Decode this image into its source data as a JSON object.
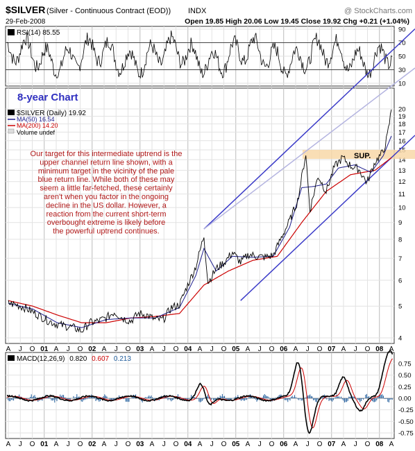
{
  "header": {
    "symbol": "$SILVER",
    "description": "(Silver - Continuous Contract (EOD))",
    "exchange": "INDX",
    "credit": "@ StockCharts.com",
    "date": "29-Feb-2008",
    "ohlc": "Open 19.85  High 20.06  Low 19.45  Close 19.92  Chg +0.21 (+1.04%)"
  },
  "rsi": {
    "label": "RSI(14) 85.55",
    "ticks": [
      "90",
      "70",
      "50",
      "30",
      "10"
    ]
  },
  "main": {
    "chart_title": "8-year Chart",
    "legend": {
      "price": "$SILVER (Daily) 19.92",
      "ma50": "MA(50) 16.54",
      "ma200": "MA(200) 14.20",
      "volume": "Volume undef"
    },
    "annotation": [
      "Our target for this intermediate uptrend is the",
      "upper channel return line shown, with a",
      "minimum target in the vicinity of the pale",
      "blue return line. While both of these may",
      "seem a little far-fetched, these certainly",
      "aren't when you factor in the ongoing",
      "decline in the US dollar. However, a",
      "reaction from the current short-term",
      "overbought extreme is likely before",
      "the powerful uptrend continues."
    ],
    "sup_label": "SUP.",
    "price_ticks": [
      "20",
      "19",
      "18",
      "17",
      "16",
      "15",
      "14",
      "13",
      "12",
      "11",
      "10",
      "9",
      "8",
      "7",
      "6",
      "5",
      "4"
    ],
    "x_axis_labels": [
      "A",
      "J",
      "O",
      "01",
      "A",
      "J",
      "O",
      "02",
      "A",
      "J",
      "O",
      "03",
      "A",
      "J",
      "O",
      "04",
      "A",
      "J",
      "O",
      "05",
      "A",
      "J",
      "O",
      "06",
      "A",
      "J",
      "O",
      "07",
      "A",
      "J",
      "O",
      "08",
      "A"
    ]
  },
  "macd": {
    "label": "MACD(12,26,9)",
    "v1": "0.820",
    "v2": "0.607",
    "v3": "0.213",
    "ticks": [
      "0.75",
      "0.50",
      "0.25",
      "0.00",
      "-0.25",
      "-0.50",
      "-0.75"
    ]
  },
  "colors": {
    "price": "#000000",
    "ma50": "#1c1c8c",
    "ma200": "#cc0000",
    "channel": "#3a3ac8",
    "pale_line": "#b4b4e0",
    "annotation": "#b01818",
    "title": "#3030c0",
    "support_band": "#f8d8a8",
    "macd_signal": "#cc0000",
    "macd_hist": "#1c5a9a"
  },
  "chart_data": {
    "type": "line",
    "title": "$SILVER (Silver - Continuous Contract (EOD)) INDX",
    "scale": "log",
    "x_range": [
      "2000-04",
      "2008-02"
    ],
    "ylim": [
      4,
      21
    ],
    "series": [
      {
        "name": "$SILVER (Daily)",
        "points": [
          [
            "2000-04",
            5.1
          ],
          [
            "2000-06",
            5.05
          ],
          [
            "2000-08",
            4.95
          ],
          [
            "2000-10",
            4.8
          ],
          [
            "2000-12",
            4.65
          ],
          [
            "2001-02",
            4.5
          ],
          [
            "2001-04",
            4.4
          ],
          [
            "2001-06",
            4.35
          ],
          [
            "2001-08",
            4.3
          ],
          [
            "2001-10",
            4.2
          ],
          [
            "2001-12",
            4.45
          ],
          [
            "2002-02",
            4.5
          ],
          [
            "2002-04",
            4.6
          ],
          [
            "2002-06",
            4.8
          ],
          [
            "2002-08",
            4.6
          ],
          [
            "2002-10",
            4.5
          ],
          [
            "2002-12",
            4.75
          ],
          [
            "2003-02",
            4.7
          ],
          [
            "2003-04",
            4.55
          ],
          [
            "2003-06",
            4.55
          ],
          [
            "2003-08",
            4.95
          ],
          [
            "2003-10",
            5.05
          ],
          [
            "2003-12",
            5.8
          ],
          [
            "2004-02",
            6.6
          ],
          [
            "2004-04",
            8.2
          ],
          [
            "2004-05",
            5.9
          ],
          [
            "2004-07",
            6.5
          ],
          [
            "2004-09",
            6.8
          ],
          [
            "2004-11",
            7.3
          ],
          [
            "2005-01",
            6.8
          ],
          [
            "2005-03",
            7.2
          ],
          [
            "2005-05",
            7.1
          ],
          [
            "2005-07",
            7.05
          ],
          [
            "2005-09",
            7.15
          ],
          [
            "2005-11",
            8.1
          ],
          [
            "2006-01",
            9.1
          ],
          [
            "2006-03",
            10.5
          ],
          [
            "2006-05",
            14.6
          ],
          [
            "2006-06",
            9.8
          ],
          [
            "2006-08",
            12.5
          ],
          [
            "2006-10",
            11.2
          ],
          [
            "2006-12",
            13.3
          ],
          [
            "2007-02",
            14.2
          ],
          [
            "2007-04",
            13.4
          ],
          [
            "2007-06",
            13.1
          ],
          [
            "2007-08",
            11.9
          ],
          [
            "2007-10",
            13.8
          ],
          [
            "2007-12",
            14.8
          ],
          [
            "2008-01",
            16.5
          ],
          [
            "2008-02",
            19.92
          ]
        ]
      },
      {
        "name": "MA(50)",
        "points": [
          [
            "2000-04",
            5.1
          ],
          [
            "2000-10",
            4.9
          ],
          [
            "2001-04",
            4.45
          ],
          [
            "2001-10",
            4.3
          ],
          [
            "2002-04",
            4.55
          ],
          [
            "2002-10",
            4.6
          ],
          [
            "2003-04",
            4.6
          ],
          [
            "2003-10",
            4.95
          ],
          [
            "2004-02",
            6.2
          ],
          [
            "2004-04",
            7.5
          ],
          [
            "2004-07",
            6.4
          ],
          [
            "2004-11",
            7.1
          ],
          [
            "2005-04",
            7.05
          ],
          [
            "2005-09",
            7.1
          ],
          [
            "2006-01",
            8.7
          ],
          [
            "2006-04",
            11.5
          ],
          [
            "2006-07",
            11.6
          ],
          [
            "2006-10",
            11.8
          ],
          [
            "2007-01",
            13.2
          ],
          [
            "2007-05",
            13.5
          ],
          [
            "2007-09",
            12.8
          ],
          [
            "2007-12",
            14.4
          ],
          [
            "2008-02",
            16.54
          ]
        ]
      },
      {
        "name": "MA(200)",
        "points": [
          [
            "2000-04",
            5.2
          ],
          [
            "2000-10",
            5.0
          ],
          [
            "2001-04",
            4.7
          ],
          [
            "2001-10",
            4.45
          ],
          [
            "2002-04",
            4.45
          ],
          [
            "2002-10",
            4.6
          ],
          [
            "2003-04",
            4.65
          ],
          [
            "2003-10",
            4.75
          ],
          [
            "2004-04",
            5.8
          ],
          [
            "2004-10",
            6.4
          ],
          [
            "2005-04",
            6.9
          ],
          [
            "2005-10",
            7.1
          ],
          [
            "2006-04",
            9.0
          ],
          [
            "2006-10",
            11.2
          ],
          [
            "2007-04",
            12.6
          ],
          [
            "2007-10",
            13.0
          ],
          [
            "2008-02",
            14.2
          ]
        ]
      }
    ],
    "rsi_range": [
      10,
      90
    ],
    "macd_range": [
      -0.75,
      0.75
    ]
  }
}
